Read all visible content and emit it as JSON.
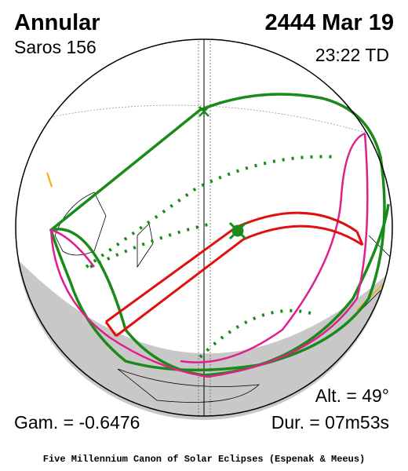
{
  "header": {
    "type": "Annular",
    "saros": "Saros 156",
    "date": "2444 Mar 19",
    "time": "23:22 TD"
  },
  "parameters": {
    "altitude": "Alt. = 49°",
    "gamma": "Gam. = -0.6476",
    "duration": "Dur. = 07m53s"
  },
  "footer": "Five Millennium Canon of Solar Eclipses (Espenak & Meeus)"
}
